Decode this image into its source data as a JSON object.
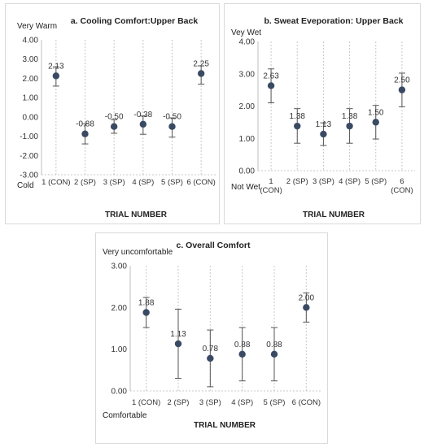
{
  "chart_data": [
    {
      "type": "scatter",
      "title": "a. Cooling Comfort:Upper Back",
      "xlabel": "TRIAL NUMBER",
      "ylabel": "",
      "top_annotation": "Very Warm",
      "bottom_annotation": "Cold",
      "categories": [
        "1 (CON)",
        "2 (SP)",
        "3 (SP)",
        "4 (SP)",
        "5 (SP)",
        "6 (CON)"
      ],
      "values": [
        2.13,
        -0.88,
        -0.5,
        -0.38,
        -0.5,
        2.25
      ],
      "value_labels": [
        "2.13",
        "-0.88",
        "-0.50",
        "-0.38",
        "-0.50",
        "2.25"
      ],
      "error_low": [
        1.6,
        -1.4,
        -0.85,
        -0.9,
        -1.05,
        1.7
      ],
      "error_high": [
        2.6,
        -0.35,
        -0.15,
        0.05,
        -0.05,
        2.65
      ],
      "ylim": [
        -3,
        4
      ],
      "yticks": [
        "4.00",
        "3.00",
        "2.00",
        "1.00",
        "0.00",
        "-1.00",
        "-2.00",
        "-3.00"
      ],
      "grid": "vertical-dotted",
      "marker_color": "#3a4a63"
    },
    {
      "type": "scatter",
      "title": "b. Sweat Eveporation: Upper Back",
      "xlabel": "TRIAL NUMBER",
      "ylabel": "",
      "top_annotation": "Vey Wet",
      "bottom_annotation": "Not Wet",
      "categories": [
        "1 (CON)",
        "2 (SP)",
        "3 (SP)",
        "4 (SP)",
        "5 (SP)",
        "6 (CON)"
      ],
      "values": [
        2.63,
        1.38,
        1.13,
        1.38,
        1.5,
        2.5
      ],
      "value_labels": [
        "2.63",
        "1.38",
        "1.13",
        "1.38",
        "1.50",
        "2.50"
      ],
      "error_low": [
        2.1,
        0.85,
        0.78,
        0.85,
        0.98,
        1.98
      ],
      "error_high": [
        3.15,
        1.92,
        1.48,
        1.92,
        2.02,
        3.02
      ],
      "ylim": [
        0,
        4
      ],
      "yticks": [
        "4.00",
        "3.00",
        "2.00",
        "1.00",
        "0.00"
      ],
      "grid": "vertical-dotted",
      "marker_color": "#3a4a63"
    },
    {
      "type": "scatter",
      "title": "c. Overall Comfort",
      "xlabel": "TRIAL NUMBER",
      "ylabel": "",
      "top_annotation": "Very uncomfortable",
      "bottom_annotation": "Comfortable",
      "categories": [
        "1 (CON)",
        "2 (SP)",
        "3 (SP)",
        "4 (SP)",
        "5 (SP)",
        "6 (CON)"
      ],
      "values": [
        1.88,
        1.13,
        0.78,
        0.88,
        0.88,
        2.0
      ],
      "value_labels": [
        "1.88",
        "1.13",
        "0.78",
        "0.88",
        "0.88",
        "2.00"
      ],
      "error_low": [
        1.52,
        0.3,
        0.1,
        0.24,
        0.24,
        1.65
      ],
      "error_high": [
        2.24,
        1.96,
        1.46,
        1.52,
        1.52,
        2.35
      ],
      "ylim": [
        0,
        3
      ],
      "yticks": [
        "3.00",
        "2.00",
        "1.00",
        "0.00"
      ],
      "grid": "vertical-dotted",
      "marker_color": "#3a4a63"
    }
  ]
}
